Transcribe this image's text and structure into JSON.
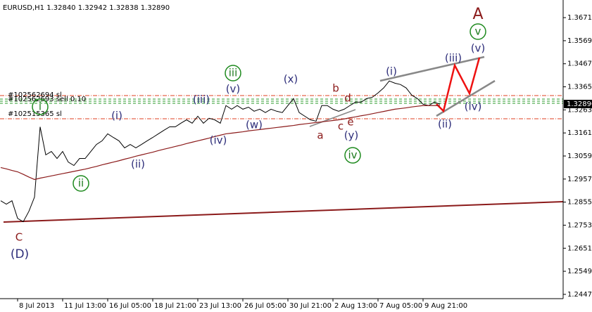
{
  "chart_data": {
    "type": "line",
    "title": "EURUSD,H1  1.32840 1.32942 1.32838 1.32890",
    "categories": [
      null,
      null,
      null,
      "8 Jul 2013",
      null,
      null,
      null,
      null,
      null,
      null,
      null,
      "11 Jul 13:00",
      null,
      null,
      null,
      null,
      null,
      null,
      null,
      "16 Jul 05:00",
      null,
      null,
      null,
      null,
      null,
      null,
      null,
      "18 Jul 21:00",
      null,
      null,
      null,
      null,
      null,
      null,
      null,
      "23 Jul 13:00",
      null,
      null,
      null,
      null,
      null,
      null,
      null,
      "26 Jul 05:00",
      null,
      null,
      null,
      null,
      null,
      null,
      null,
      "30 Jul 21:00",
      null,
      null,
      null,
      null,
      null,
      null,
      null,
      "2 Aug 13:00",
      null,
      null,
      null,
      null,
      null,
      null,
      null,
      "7 Aug 05:00",
      null,
      null,
      null,
      null,
      null,
      null,
      null,
      "9 Aug 21:00",
      null,
      null,
      null
    ],
    "series": [
      {
        "color": "#000000",
        "values": [
          1.2861,
          1.2846,
          1.2861,
          1.2783,
          1.2768,
          1.2814,
          1.2877,
          1.3188,
          1.3064,
          1.3079,
          1.3048,
          1.3079,
          1.3032,
          1.3017,
          1.3048,
          1.3048,
          1.3079,
          1.311,
          1.3126,
          1.3157,
          1.3141,
          1.3126,
          1.3095,
          1.311,
          1.3095,
          1.311,
          1.3126,
          1.3141,
          1.3157,
          1.3173,
          1.3188,
          1.3188,
          1.3204,
          1.3219,
          1.3204,
          1.3235,
          1.3204,
          1.3226,
          1.3219,
          1.3204,
          1.3282,
          1.3266,
          1.3282,
          1.3266,
          1.3275,
          1.3257,
          1.3266,
          1.3251,
          1.3266,
          1.3257,
          1.3251,
          1.3282,
          1.3313,
          1.3251,
          1.3235,
          1.3219,
          1.3213,
          1.3282,
          1.3282,
          1.3266,
          1.3257,
          1.3266,
          1.3282,
          1.3297,
          1.3297,
          1.3313,
          1.3319,
          1.3338,
          1.336,
          1.3391,
          1.3381,
          1.3375,
          1.336,
          1.3328,
          1.3313,
          1.3288,
          1.3282,
          1.3297,
          1.3288
        ]
      },
      {
        "color": "#8b1a1a",
        "values": [
          1.3008,
          1.3002,
          1.2995,
          1.2989,
          1.2978,
          1.2966,
          1.2955,
          1.2961,
          1.2966,
          1.2971,
          1.2976,
          1.2981,
          1.2986,
          1.2991,
          1.2996,
          1.3001,
          1.3007,
          1.3013,
          1.302,
          1.3026,
          1.3032,
          1.3038,
          1.3045,
          1.3051,
          1.3058,
          1.3064,
          1.307,
          1.3076,
          1.3083,
          1.3089,
          1.3095,
          1.3101,
          1.3107,
          1.3114,
          1.312,
          1.3126,
          1.3132,
          1.3138,
          1.3145,
          1.3151,
          1.3157,
          1.316,
          1.3163,
          1.3166,
          1.317,
          1.3173,
          1.3176,
          1.3179,
          1.3182,
          1.3185,
          1.3188,
          1.3191,
          1.3194,
          1.3198,
          1.3201,
          1.3204,
          1.3207,
          1.321,
          1.3213,
          1.3216,
          1.3219,
          1.3223,
          1.3228,
          1.3232,
          1.3237,
          1.3241,
          1.3246,
          1.3251,
          1.3256,
          1.3261,
          1.3266,
          1.3269,
          1.3272,
          1.3276,
          1.3279,
          1.3282,
          1.3282,
          1.3282,
          1.3282
        ]
      }
    ],
    "ylim": [
      1.2428,
      1.3749
    ],
    "yticks": [
      {
        "value": 1.3671,
        "label": "1.36710"
      },
      {
        "value": 1.3569,
        "label": "1.35690"
      },
      {
        "value": 1.3467,
        "label": "1.34670"
      },
      {
        "value": 1.3365,
        "label": "1.33650"
      },
      {
        "value": 1.3263,
        "label": "1.32630"
      },
      {
        "value": 1.3161,
        "label": "1.31610"
      },
      {
        "value": 1.3059,
        "label": "1.30590"
      },
      {
        "value": 1.2957,
        "label": "1.29570"
      },
      {
        "value": 1.2855,
        "label": "1.28550"
      },
      {
        "value": 1.2753,
        "label": "1.27530"
      },
      {
        "value": 1.2651,
        "label": "1.26510"
      },
      {
        "value": 1.2549,
        "label": "1.25490"
      },
      {
        "value": 1.2447,
        "label": "1.24470"
      }
    ],
    "last_price": {
      "value": 1.3289,
      "label": "1.32890"
    },
    "order_labels": [
      "#102562694 sl",
      "#102562693 sell 0.10",
      "#102515365 sl"
    ],
    "annotations": [
      "C",
      "(D)",
      "i",
      "(i)",
      "ii",
      "(ii)",
      "(iii)",
      "iii",
      "(v)",
      "(iv)",
      "(w)",
      "(x)",
      "a",
      "b",
      "c",
      "d",
      "e",
      "(y)",
      "iv",
      "(i)",
      "(ii)",
      "(iii)",
      "(iv)",
      "(v)",
      "v",
      "A"
    ]
  }
}
